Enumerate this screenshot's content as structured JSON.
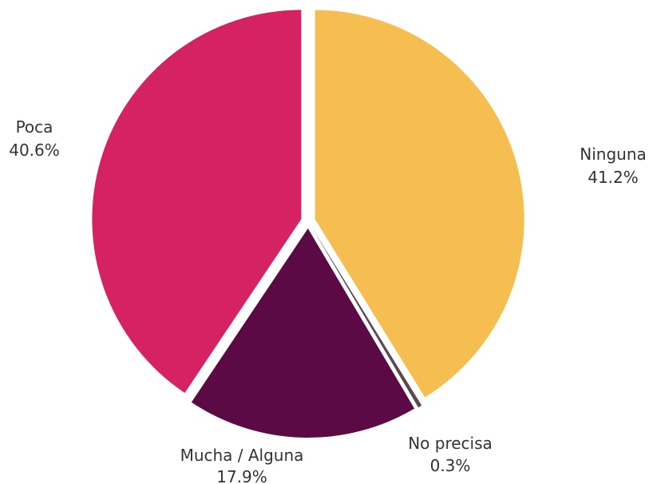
{
  "chart_data": {
    "type": "pie",
    "title": "",
    "slices": [
      {
        "name": "Ninguna",
        "value": 41.2,
        "value_label": "41.2%",
        "color": "#F6BE50"
      },
      {
        "name": "No precisa",
        "value": 0.3,
        "value_label": "0.3%",
        "color": "#5B4A55"
      },
      {
        "name": "Mucha / Alguna",
        "value": 17.9,
        "value_label": "17.9%",
        "color": "#5C0A46"
      },
      {
        "name": "Poca",
        "value": 40.6,
        "value_label": "40.6%",
        "color": "#D42262"
      }
    ],
    "start_angle_deg": 0,
    "direction": "clockwise",
    "exploded": true,
    "legend": "none"
  }
}
